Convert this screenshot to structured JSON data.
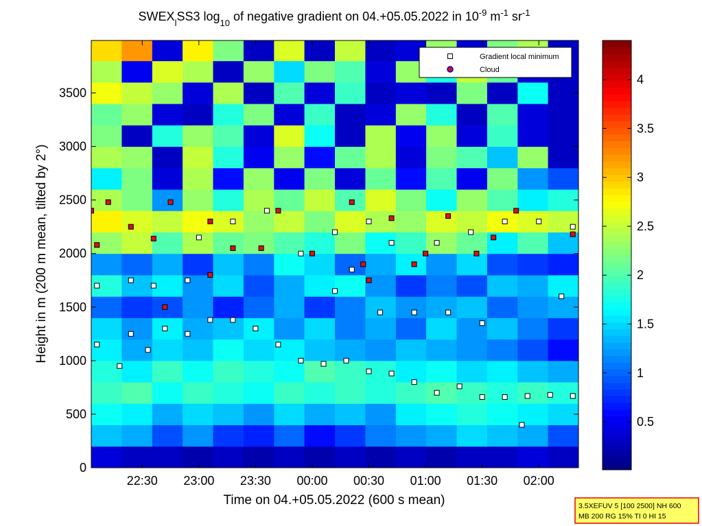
{
  "chart_data": {
    "type": "heatmap",
    "title_parts": [
      {
        "text": "SWEX"
      },
      {
        "text": "l",
        "script": "sub"
      },
      {
        "text": "SS3 log"
      },
      {
        "text": "10",
        "script": "sub"
      },
      {
        "text": " of negative gradient on 04.+05.05.2022 in 10"
      },
      {
        "text": "-9",
        "script": "sup"
      },
      {
        "text": " m"
      },
      {
        "text": "-1",
        "script": "sup"
      },
      {
        "text": " sr"
      },
      {
        "text": "-1",
        "script": "sup"
      }
    ],
    "x_label": "Time on 04.+05.05.2022 (600 s mean)",
    "y_label": "Height in m (200 m mean, tilted by 2°)",
    "xlim": [
      22.05,
      26.35
    ],
    "xticks": [
      {
        "value": 22.5,
        "label": "22:30"
      },
      {
        "value": 23,
        "label": "23:00"
      },
      {
        "value": 23.5,
        "label": "23:30"
      },
      {
        "value": 24,
        "label": "00:00"
      },
      {
        "value": 24.5,
        "label": "00:30"
      },
      {
        "value": 25,
        "label": "01:00"
      },
      {
        "value": 25.5,
        "label": "01:30"
      },
      {
        "value": 26,
        "label": "02:00"
      }
    ],
    "ylim": [
      0,
      3990
    ],
    "yticks": [
      0,
      500,
      1000,
      1500,
      2000,
      2500,
      3000,
      3500
    ],
    "colormap": "jet",
    "clim": [
      0.01,
      4.4
    ],
    "cticks": [
      0.5,
      1,
      1.5,
      2,
      2.5,
      3,
      3.5,
      4
    ],
    "x_edges": [
      22.05,
      22.319,
      22.588,
      22.856,
      23.125,
      23.394,
      23.663,
      23.931,
      24.2,
      24.469,
      24.738,
      25.006,
      25.275,
      25.544,
      25.813,
      26.081,
      26.35
    ],
    "y_edges": [
      0,
      200,
      400,
      600,
      800,
      1000,
      1200,
      1400,
      1600,
      1800,
      2000,
      2200,
      2400,
      2600,
      2800,
      3000,
      3200,
      3400,
      3600,
      3800,
      4000
    ],
    "z": [
      [
        0.4,
        0.3,
        0.3,
        0.2,
        0.3,
        0.2,
        0.3,
        0.2,
        0.3,
        0.2,
        0.3,
        0.2,
        0.3,
        0.3,
        0.4,
        0.3
      ],
      [
        1.4,
        1.3,
        0.9,
        1.2,
        0.8,
        0.7,
        1.0,
        0.6,
        0.8,
        1.1,
        1.2,
        1.3,
        1.5,
        1.4,
        1.3,
        0.9
      ],
      [
        1.7,
        1.6,
        1.3,
        1.5,
        1.4,
        1.2,
        1.5,
        1.3,
        1.4,
        1.2,
        1.6,
        1.7,
        1.8,
        1.7,
        1.6,
        1.5
      ],
      [
        1.9,
        2.0,
        1.7,
        1.9,
        1.8,
        1.7,
        1.9,
        1.8,
        1.9,
        1.8,
        1.9,
        2.0,
        1.9,
        1.8,
        1.9,
        1.8
      ],
      [
        1.8,
        1.6,
        1.9,
        1.7,
        1.9,
        1.8,
        1.7,
        2.0,
        1.9,
        1.8,
        1.6,
        1.7,
        1.5,
        1.6,
        1.4,
        1.3
      ],
      [
        1.6,
        1.3,
        1.5,
        1.4,
        1.7,
        1.5,
        1.6,
        1.4,
        1.3,
        1.2,
        1.4,
        1.3,
        1.2,
        1.1,
        0.9,
        0.6
      ],
      [
        1.5,
        1.2,
        1.6,
        1.3,
        1.4,
        1.6,
        1.2,
        1.5,
        1.1,
        1.3,
        1.0,
        1.5,
        1.2,
        1.4,
        1.1,
        0.8
      ],
      [
        1.0,
        0.8,
        0.9,
        1.2,
        0.7,
        1.0,
        1.3,
        0.8,
        1.1,
        1.4,
        1.2,
        1.3,
        1.4,
        1.0,
        1.2,
        1.3
      ],
      [
        1.8,
        1.4,
        1.6,
        1.2,
        1.5,
        0.9,
        1.3,
        1.6,
        1.7,
        1.2,
        0.8,
        1.1,
        0.9,
        1.4,
        1.3,
        1.6
      ],
      [
        1.2,
        1.0,
        1.3,
        0.8,
        1.4,
        1.1,
        1.7,
        1.5,
        1.0,
        1.3,
        1.6,
        1.2,
        1.5,
        0.9,
        0.8,
        0.7
      ],
      [
        2.3,
        2.5,
        2.0,
        2.4,
        2.1,
        2.2,
        2.0,
        1.8,
        2.2,
        1.7,
        1.9,
        2.3,
        2.1,
        1.6,
        2.0,
        1.4
      ],
      [
        2.8,
        2.6,
        2.5,
        2.7,
        2.6,
        2.3,
        2.5,
        2.2,
        2.6,
        2.4,
        2.3,
        2.6,
        2.5,
        2.7,
        2.6,
        2.5
      ],
      [
        2.4,
        2.2,
        1.2,
        2.3,
        1.8,
        2.4,
        2.1,
        2.5,
        2.0,
        2.6,
        2.2,
        1.7,
        2.3,
        2.0,
        1.6,
        1.8
      ],
      [
        1.6,
        2.2,
        0.4,
        2.4,
        0.6,
        2.3,
        0.5,
        2.2,
        0.4,
        2.1,
        0.6,
        2.0,
        0.5,
        2.2,
        1.2,
        0.9
      ],
      [
        2.4,
        2.3,
        0.3,
        2.5,
        1.8,
        0.5,
        2.3,
        0.6,
        2.1,
        2.4,
        0.4,
        2.2,
        2.0,
        1.4,
        2.3,
        0.3
      ],
      [
        2.2,
        0.3,
        1.8,
        2.3,
        2.0,
        0.4,
        2.6,
        1.7,
        0.3,
        2.4,
        0.5,
        2.3,
        0.4,
        1.9,
        0.4,
        0.3
      ],
      [
        2.1,
        2.3,
        0.4,
        0.3,
        1.8,
        2.2,
        0.4,
        1.9,
        0.3,
        0.4,
        2.3,
        1.8,
        0.3,
        2.0,
        0.4,
        0.3
      ],
      [
        2.7,
        2.5,
        2.3,
        0.4,
        2.4,
        0.3,
        2.0,
        0.4,
        1.9,
        0.3,
        0.4,
        0.3,
        2.2,
        0.3,
        1.7,
        0.3
      ],
      [
        2.4,
        0.5,
        2.6,
        2.4,
        0.3,
        2.3,
        1.5,
        2.2,
        2.0,
        0.4,
        2.3,
        1.8,
        2.5,
        2.1,
        0.4,
        0.3
      ],
      [
        2.9,
        3.2,
        0.4,
        2.8,
        2.2,
        0.3,
        2.6,
        0.3,
        2.5,
        0.3,
        0.4,
        2.3,
        0.4,
        2.2,
        2.4,
        0.3
      ]
    ],
    "series": [
      {
        "name": "Gradient local minimum",
        "color": "#ffffff",
        "marker": "square",
        "x": [
          22.1,
          22.3,
          22.4,
          22.55,
          22.7,
          22.9,
          23.1,
          23.3,
          23.5,
          23.7,
          23.9,
          24.1,
          24.3,
          24.5,
          24.7,
          24.9,
          25.1,
          25.3,
          25.5,
          25.7,
          25.9,
          26.1,
          26.3,
          22.1,
          22.4,
          22.6,
          23.0,
          23.3,
          23.6,
          23.9,
          24.2,
          24.5,
          24.7,
          25.1,
          25.4,
          25.7,
          26.0,
          26.3,
          24.2,
          24.6,
          24.9,
          25.2,
          25.5,
          26.2,
          22.9,
          24.35,
          25.85
        ],
        "y": [
          1150,
          950,
          1250,
          1100,
          1300,
          1250,
          1380,
          1380,
          1300,
          1150,
          1000,
          970,
          1000,
          900,
          880,
          800,
          700,
          760,
          660,
          660,
          670,
          680,
          670,
          1700,
          1750,
          1700,
          2150,
          2300,
          2400,
          2000,
          2200,
          2300,
          2100,
          2100,
          2200,
          2300,
          2300,
          2250,
          1650,
          1450,
          1450,
          1450,
          1350,
          1600,
          1750,
          1850,
          400
        ]
      },
      {
        "name": "Cloud",
        "color": "#dd1111",
        "marker": "circle",
        "x": [
          22.05,
          22.2,
          22.4,
          22.6,
          22.75,
          23.1,
          23.3,
          23.55,
          23.7,
          24.0,
          24.35,
          24.45,
          24.7,
          24.9,
          25.0,
          25.2,
          25.45,
          25.6,
          25.8,
          26.3,
          22.1,
          22.7,
          23.1,
          24.5
        ],
        "y": [
          2400,
          2480,
          2250,
          2140,
          2480,
          2300,
          2050,
          2050,
          2400,
          2000,
          2480,
          1900,
          2330,
          1900,
          2000,
          2350,
          2000,
          2150,
          2400,
          2180,
          2080,
          1500,
          1800,
          1750
        ]
      }
    ],
    "legend": "upper right",
    "annotation": [
      "3.5XEFUV 5 [100 2500] NH 600",
      "MB 200 RG 15% TI 0 HI 15"
    ]
  }
}
